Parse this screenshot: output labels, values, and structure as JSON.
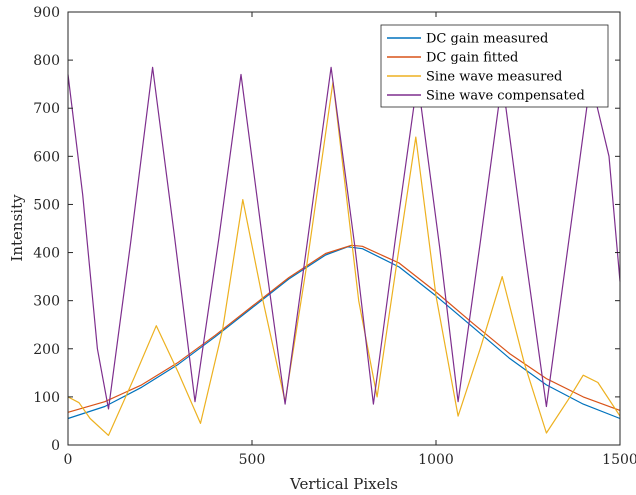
{
  "chart_data": {
    "type": "line",
    "title": "",
    "xlabel": "Vertical Pixels",
    "ylabel": "Intensity",
    "xlim": [
      0,
      1500
    ],
    "ylim": [
      0,
      900
    ],
    "xticks": [
      0,
      500,
      1000,
      1500
    ],
    "yticks": [
      0,
      100,
      200,
      300,
      400,
      500,
      600,
      700,
      800,
      900
    ],
    "grid": false,
    "legend_position": "top-right",
    "series": [
      {
        "name": "DC gain measured",
        "color": "#0072BD",
        "x": [
          0,
          100,
          200,
          300,
          400,
          500,
          600,
          700,
          760,
          800,
          900,
          1000,
          1100,
          1200,
          1300,
          1400,
          1500
        ],
        "y": [
          55,
          80,
          120,
          168,
          225,
          285,
          345,
          395,
          412,
          408,
          370,
          310,
          245,
          180,
          125,
          85,
          55
        ]
      },
      {
        "name": "DC gain fitted",
        "color": "#D95319",
        "x": [
          0,
          100,
          200,
          300,
          400,
          500,
          600,
          700,
          770,
          800,
          900,
          1000,
          1100,
          1200,
          1300,
          1400,
          1500
        ],
        "y": [
          68,
          90,
          125,
          172,
          228,
          288,
          348,
          398,
          415,
          413,
          378,
          318,
          253,
          190,
          138,
          100,
          72
        ]
      },
      {
        "name": "Sine wave measured",
        "color": "#EDB120",
        "x": [
          0,
          30,
          60,
          110,
          180,
          240,
          300,
          360,
          420,
          475,
          530,
          590,
          650,
          720,
          790,
          840,
          890,
          945,
          1000,
          1060,
          1120,
          1180,
          1240,
          1300,
          1360,
          1400,
          1440,
          1500
        ],
        "y": [
          100,
          88,
          55,
          20,
          140,
          248,
          150,
          45,
          240,
          510,
          300,
          90,
          380,
          755,
          300,
          100,
          360,
          640,
          310,
          60,
          200,
          350,
          170,
          25,
          95,
          145,
          130,
          60
        ]
      },
      {
        "name": "Sine wave compensated",
        "color": "#7E2F8E",
        "x": [
          0,
          40,
          80,
          110,
          170,
          230,
          290,
          345,
          410,
          470,
          530,
          590,
          650,
          715,
          780,
          830,
          890,
          950,
          1010,
          1060,
          1120,
          1180,
          1240,
          1300,
          1360,
          1420,
          1470,
          1500
        ],
        "y": [
          770,
          520,
          200,
          75,
          420,
          785,
          430,
          90,
          430,
          770,
          420,
          85,
          420,
          785,
          410,
          85,
          430,
          760,
          410,
          90,
          420,
          760,
          410,
          80,
          420,
          760,
          600,
          340
        ]
      }
    ]
  }
}
